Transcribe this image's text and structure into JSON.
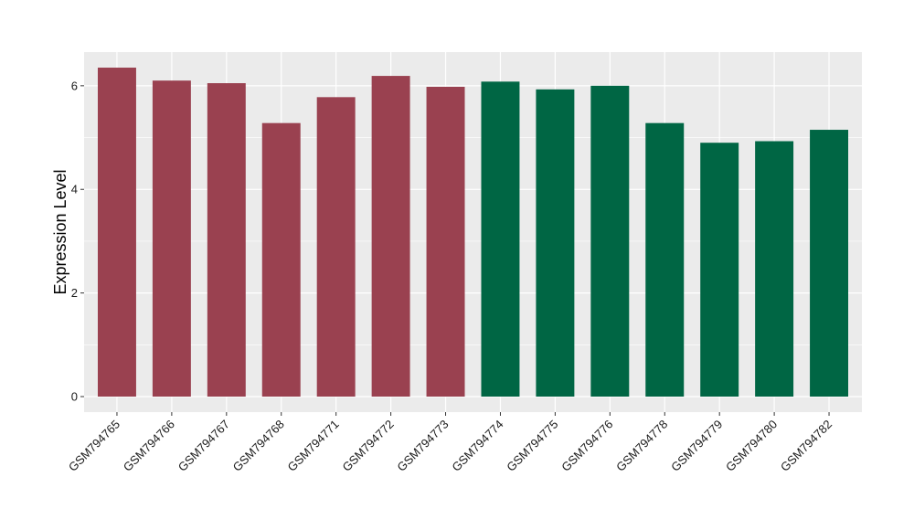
{
  "chart_data": {
    "type": "bar",
    "title": "",
    "xlabel": "",
    "ylabel": "Expression Level",
    "ylim": [
      -0.3,
      6.65
    ],
    "yticks": [
      0,
      2,
      4,
      6
    ],
    "grid": true,
    "legend": "none",
    "categories": [
      "GSM794765",
      "GSM794766",
      "GSM794767",
      "GSM794768",
      "GSM794771",
      "GSM794772",
      "GSM794773",
      "GSM794774",
      "GSM794775",
      "GSM794776",
      "GSM794778",
      "GSM794779",
      "GSM794780",
      "GSM794782"
    ],
    "values": [
      6.35,
      6.1,
      6.05,
      5.28,
      5.78,
      6.19,
      5.98,
      6.08,
      5.93,
      6.0,
      5.28,
      4.9,
      4.93,
      5.15
    ],
    "colors": [
      "#9A4150",
      "#9A4150",
      "#9A4150",
      "#9A4150",
      "#9A4150",
      "#9A4150",
      "#9A4150",
      "#006644",
      "#006644",
      "#006644",
      "#006644",
      "#006644",
      "#006644",
      "#006644"
    ]
  }
}
